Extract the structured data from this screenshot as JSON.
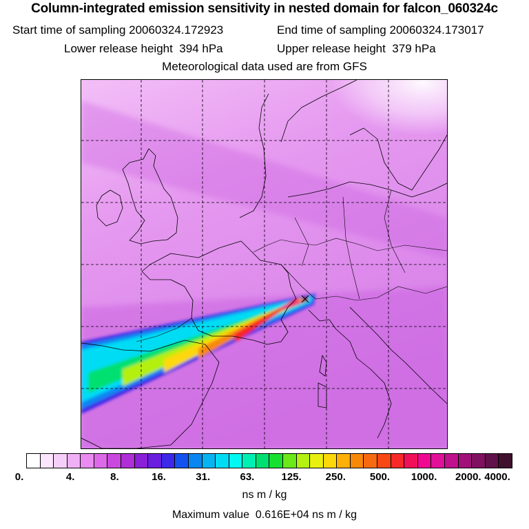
{
  "header": {
    "title": "Column-integrated emission sensitivity in nested domain for falcon_060324c",
    "start_label": "Start time of sampling",
    "start_value": "20060324.172923",
    "end_label": "End time of sampling",
    "end_value": "20060324.173017",
    "lower_label": "Lower release height",
    "lower_value": "394 hPa",
    "upper_label": "Upper release height",
    "upper_value": "379 hPa",
    "met_source": "Meteorological data used are from GFS"
  },
  "map": {
    "background_color": "#e98bf0",
    "gridlines": "dashed",
    "plume_source": "Alps, near Lake Geneva",
    "plume_direction": "west-southwest towards Bay of Biscay / Iberia"
  },
  "colorbar": {
    "swatches": [
      "#ffffff",
      "#fbe6fd",
      "#f6cff9",
      "#f0b0f6",
      "#e98bf0",
      "#dc6ae8",
      "#cb48e0",
      "#b02ed8",
      "#8c20d8",
      "#6a1ee0",
      "#3c28e8",
      "#1452f0",
      "#0a86f2",
      "#06b4f2",
      "#00dcf4",
      "#00f8f2",
      "#00f0b4",
      "#00e070",
      "#18e030",
      "#6ae818",
      "#b4f010",
      "#e8f010",
      "#fcd80a",
      "#fcb008",
      "#f88808",
      "#f86a10",
      "#f84814",
      "#f82828",
      "#f0105a",
      "#f00890",
      "#e01098",
      "#c0108c",
      "#a01078",
      "#801060",
      "#60104a",
      "#40102e"
    ],
    "tick_labels": [
      "0.",
      "4.",
      "8.",
      "16.",
      "31.",
      "63.",
      "125.",
      "250.",
      "500.",
      "1000.",
      "2000.",
      "4000."
    ],
    "units": "ns m / kg"
  },
  "footer": {
    "max_label": "Maximum value",
    "max_value": "0.616E+04 ns m / kg"
  }
}
